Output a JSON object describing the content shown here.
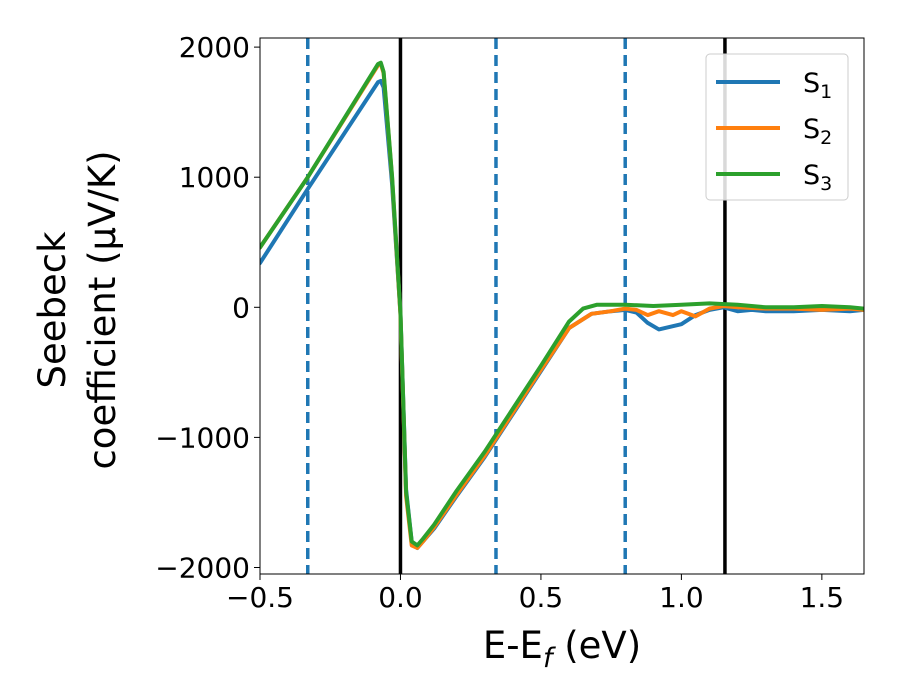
{
  "chart_data": {
    "type": "line",
    "xlabel": "E-E_f (eV)",
    "ylabel_line1": "Seebeck",
    "ylabel_line2": "coefficient  (μV/K)",
    "xlim": [
      -0.5,
      1.65
    ],
    "ylim": [
      -2050,
      2070
    ],
    "x_ticks": [
      -0.5,
      0.0,
      0.5,
      1.0,
      1.5
    ],
    "x_tick_labels": [
      "−0.5",
      "0.0",
      "0.5",
      "1.0",
      "1.5"
    ],
    "y_ticks": [
      -2000,
      -1000,
      0,
      1000,
      2000
    ],
    "y_tick_labels": [
      "−2000",
      "−1000",
      "0",
      "1000",
      "2000"
    ],
    "grid": false,
    "legend_position": "top-right",
    "vertical_lines": [
      {
        "x": -0.33,
        "style": "dashed",
        "color": "#1f77b4"
      },
      {
        "x": 0.0,
        "style": "solid",
        "color": "#000000"
      },
      {
        "x": 0.34,
        "style": "dashed",
        "color": "#1f77b4"
      },
      {
        "x": 0.8,
        "style": "dashed",
        "color": "#1f77b4"
      },
      {
        "x": 1.155,
        "style": "solid",
        "color": "#000000"
      }
    ],
    "series": [
      {
        "name": "S1",
        "legend_base": "S",
        "legend_sub": "1",
        "color": "#1f77b4",
        "x": [
          -0.5,
          -0.33,
          -0.08,
          -0.07,
          -0.06,
          -0.03,
          0.0,
          0.02,
          0.04,
          0.06,
          0.08,
          0.12,
          0.2,
          0.3,
          0.4,
          0.5,
          0.6,
          0.68,
          0.75,
          0.8,
          0.84,
          0.88,
          0.92,
          1.0,
          1.05,
          1.1,
          1.15,
          1.2,
          1.25,
          1.3,
          1.4,
          1.5,
          1.6,
          1.65
        ],
        "y": [
          340,
          910,
          1730,
          1740,
          1690,
          950,
          -50,
          -1400,
          -1800,
          -1850,
          -1800,
          -1700,
          -1450,
          -1150,
          -820,
          -490,
          -160,
          -50,
          -30,
          -20,
          -40,
          -120,
          -170,
          -130,
          -60,
          -20,
          0,
          -30,
          -20,
          -30,
          -30,
          -20,
          -30,
          -20
        ]
      },
      {
        "name": "S2",
        "legend_base": "S",
        "legend_sub": "2",
        "color": "#ff7f0e",
        "x": [
          -0.5,
          -0.33,
          -0.08,
          -0.07,
          -0.06,
          -0.03,
          0.0,
          0.02,
          0.04,
          0.06,
          0.08,
          0.12,
          0.2,
          0.3,
          0.4,
          0.5,
          0.6,
          0.68,
          0.75,
          0.8,
          0.84,
          0.88,
          0.92,
          0.97,
          1.0,
          1.05,
          1.1,
          1.15,
          1.2,
          1.3,
          1.4,
          1.5,
          1.6,
          1.65
        ],
        "y": [
          460,
          1000,
          1860,
          1870,
          1800,
          1000,
          -60,
          -1450,
          -1830,
          -1850,
          -1800,
          -1690,
          -1440,
          -1140,
          -810,
          -480,
          -160,
          -50,
          -30,
          -10,
          -20,
          -60,
          -30,
          -60,
          -30,
          -70,
          -10,
          10,
          0,
          -10,
          -10,
          -20,
          -10,
          -20
        ]
      },
      {
        "name": "S3",
        "legend_base": "S",
        "legend_sub": "3",
        "color": "#2ca02c",
        "x": [
          -0.5,
          -0.33,
          -0.08,
          -0.07,
          -0.06,
          -0.03,
          0.0,
          0.02,
          0.04,
          0.06,
          0.08,
          0.12,
          0.2,
          0.3,
          0.4,
          0.5,
          0.6,
          0.65,
          0.7,
          0.8,
          0.9,
          1.0,
          1.1,
          1.2,
          1.3,
          1.4,
          1.5,
          1.6,
          1.65
        ],
        "y": [
          460,
          1000,
          1870,
          1880,
          1810,
          1010,
          -40,
          -1420,
          -1800,
          -1830,
          -1780,
          -1670,
          -1410,
          -1110,
          -780,
          -450,
          -110,
          -10,
          20,
          20,
          10,
          20,
          30,
          20,
          0,
          0,
          10,
          0,
          -10
        ]
      }
    ]
  }
}
